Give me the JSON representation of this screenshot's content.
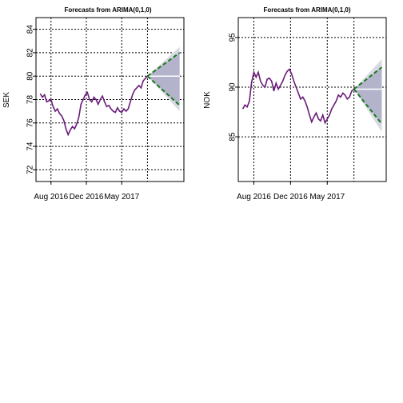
{
  "chart_data": [
    {
      "type": "line",
      "title": "Forecasts from ARIMA(0,1,0)",
      "xlabel": "",
      "ylabel": "SEK",
      "ylim": [
        71,
        85
      ],
      "y_ticks": [
        72,
        74,
        76,
        78,
        80,
        82,
        84
      ],
      "x_tick_labels": [
        "Aug 2016",
        "Dec 2016",
        "May 2017"
      ],
      "x_tick_positions": [
        0.1,
        0.43,
        0.76
      ],
      "grid": true,
      "series": [
        {
          "kind": "observed",
          "color": "#6a1b7a",
          "x": [
            0,
            0.02,
            0.04,
            0.06,
            0.08,
            0.1,
            0.12,
            0.14,
            0.16,
            0.18,
            0.2,
            0.22,
            0.24,
            0.26,
            0.28,
            0.3,
            0.32,
            0.34,
            0.36,
            0.38,
            0.4,
            0.42,
            0.44,
            0.46,
            0.48,
            0.5,
            0.52,
            0.54,
            0.56,
            0.58,
            0.6,
            0.62,
            0.64,
            0.66,
            0.68,
            0.7,
            0.72,
            0.74,
            0.76,
            0.78,
            0.8,
            0.82,
            0.84,
            0.86,
            0.88,
            0.9,
            0.92,
            0.94,
            0.96,
            0.98,
            1.0
          ],
          "values": [
            78.5,
            78.2,
            78.4,
            77.8,
            77.9,
            78.0,
            77.4,
            77.0,
            77.2,
            76.8,
            76.6,
            76.2,
            75.5,
            75.0,
            75.4,
            75.7,
            75.5,
            75.9,
            76.5,
            77.6,
            78.0,
            78.4,
            78.6,
            78.0,
            77.8,
            78.2,
            78.0,
            77.6,
            78.0,
            78.3,
            77.8,
            77.4,
            77.5,
            77.2,
            77.0,
            76.9,
            77.3,
            77.0,
            76.9,
            77.2,
            77.0,
            77.2,
            77.8,
            78.4,
            78.8,
            79.0,
            79.2,
            79.0,
            79.6,
            79.8,
            80.0
          ]
        }
      ],
      "forecast": {
        "x_start": 1.0,
        "x_end": 1.3,
        "point": 80.0,
        "lo80_end": 77.5,
        "hi80_end": 82.0,
        "lo95_end": 77.0,
        "hi95_end": 82.5,
        "band80_color": "#b3b3cc",
        "band95_color": "#d9d9e6",
        "interval_line_color": "#1a7a1a",
        "point_line_color": "#ffffff"
      }
    },
    {
      "type": "line",
      "title": "Forecasts from ARIMA(0,1,0)",
      "xlabel": "",
      "ylabel": "NOK",
      "ylim": [
        80.5,
        97
      ],
      "y_ticks": [
        85,
        90,
        95
      ],
      "x_tick_labels": [
        "Aug 2016",
        "Dec 2016",
        "May 2017"
      ],
      "x_tick_positions": [
        0.1,
        0.43,
        0.76
      ],
      "grid": true,
      "series": [
        {
          "kind": "observed",
          "color": "#6a1b7a",
          "x": [
            0,
            0.02,
            0.04,
            0.06,
            0.08,
            0.1,
            0.12,
            0.14,
            0.16,
            0.18,
            0.2,
            0.22,
            0.24,
            0.26,
            0.28,
            0.3,
            0.32,
            0.34,
            0.36,
            0.38,
            0.4,
            0.42,
            0.44,
            0.46,
            0.48,
            0.5,
            0.52,
            0.54,
            0.56,
            0.58,
            0.6,
            0.62,
            0.64,
            0.66,
            0.68,
            0.7,
            0.72,
            0.74,
            0.76,
            0.78,
            0.8,
            0.82,
            0.84,
            0.86,
            0.88,
            0.9,
            0.92,
            0.94,
            0.96,
            0.98,
            1.0
          ],
          "values": [
            87.8,
            88.2,
            88.0,
            88.6,
            90.5,
            91.5,
            91.0,
            91.5,
            90.6,
            90.2,
            90.0,
            90.8,
            90.9,
            90.6,
            89.6,
            90.4,
            89.8,
            90.2,
            90.6,
            91.2,
            91.6,
            91.8,
            91.3,
            90.6,
            90.0,
            89.4,
            88.8,
            89.0,
            88.6,
            88.0,
            87.2,
            86.5,
            87.0,
            87.4,
            86.8,
            86.6,
            87.2,
            86.4,
            86.8,
            87.2,
            87.8,
            88.2,
            88.6,
            89.2,
            89.0,
            89.4,
            89.2,
            88.8,
            89.0,
            89.6,
            89.8
          ]
        }
      ],
      "forecast": {
        "x_start": 1.0,
        "x_end": 1.25,
        "point": 89.8,
        "lo80_end": 86.3,
        "hi80_end": 92.0,
        "lo95_end": 85.5,
        "hi95_end": 92.8,
        "band80_color": "#b3b3cc",
        "band95_color": "#d9d9e6",
        "interval_line_color": "#1a7a1a",
        "point_line_color": "#ffffff"
      }
    }
  ]
}
